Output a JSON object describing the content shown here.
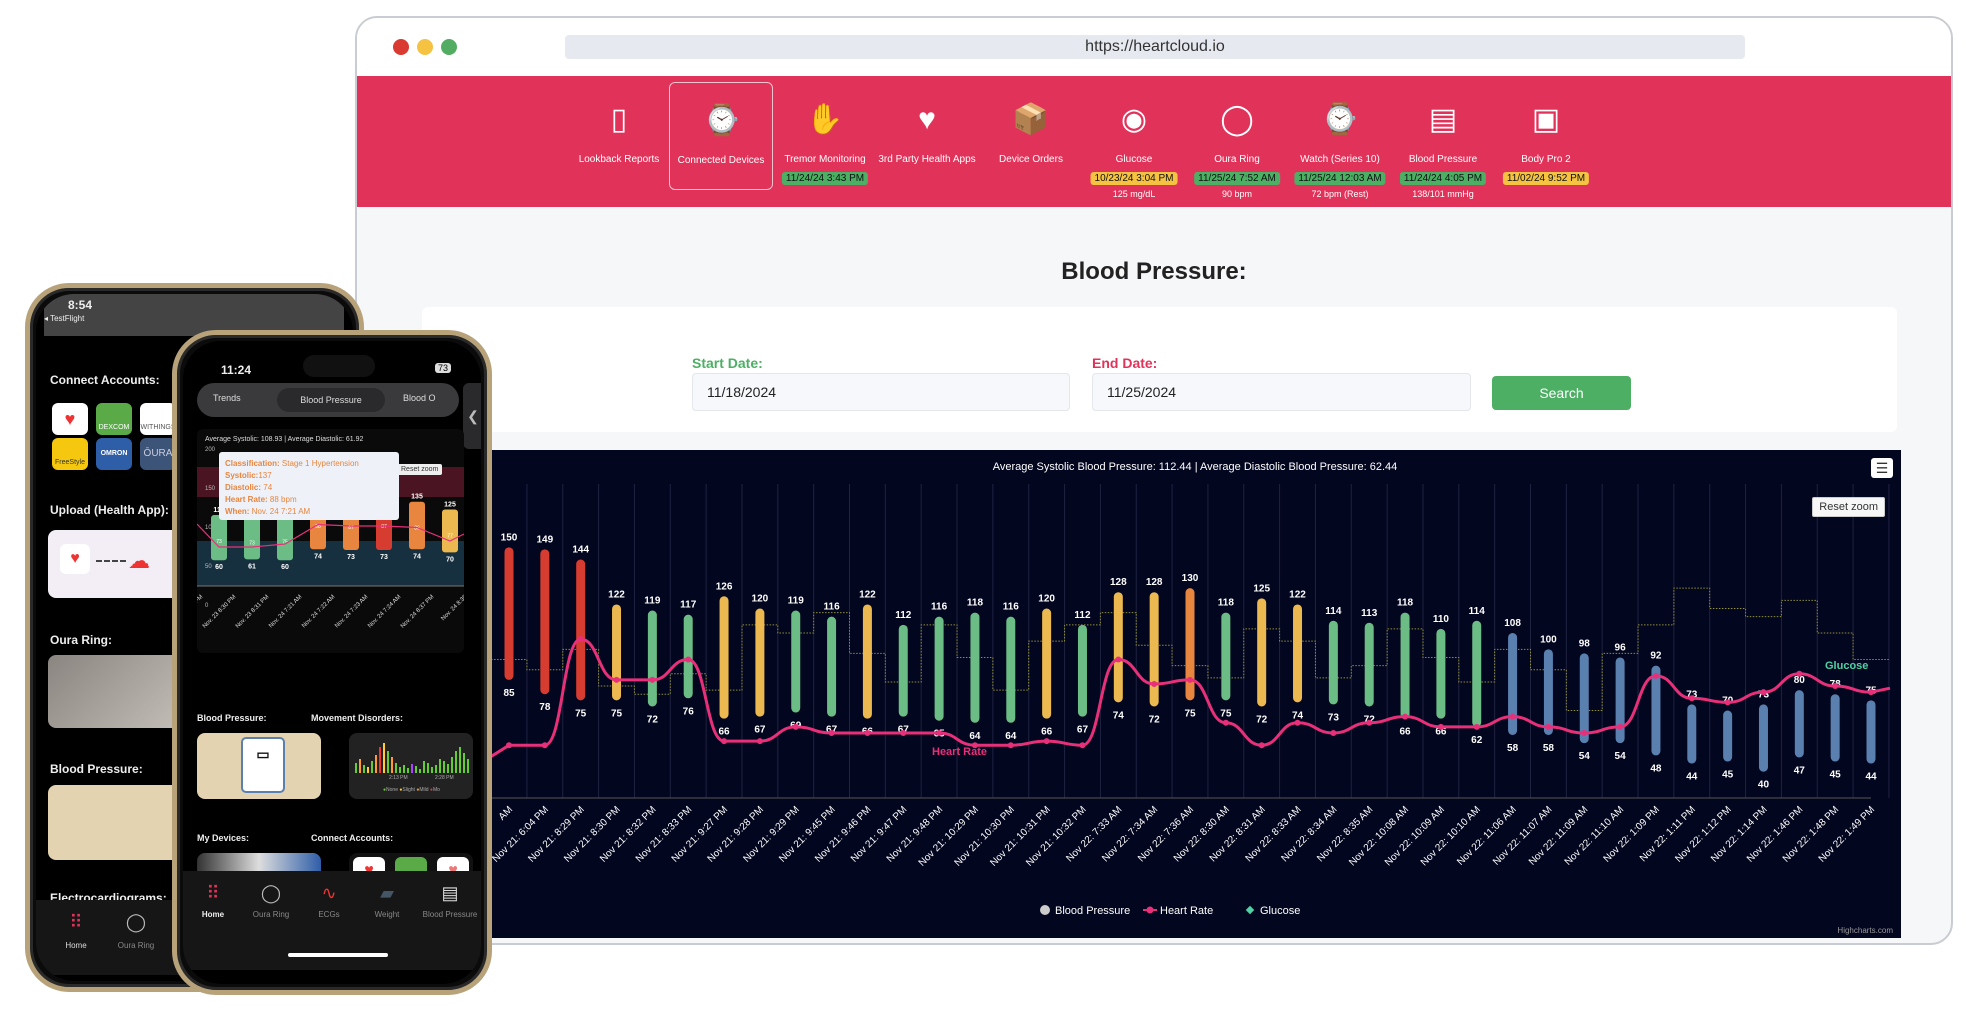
{
  "browser": {
    "url": "https://heartcloud.io",
    "traffic_colors": [
      "#d93a32",
      "#f5c242",
      "#52ad63"
    ]
  },
  "nav": {
    "accent": "#e1325a",
    "items": [
      {
        "label": "Lookback Reports",
        "icon": "report-icon"
      },
      {
        "label": "Connected Devices",
        "icon": "watch-devices-icon",
        "selected": true
      },
      {
        "label": "Tremor Monitoring",
        "icon": "tremor-hand-icon",
        "badge": "11/24/24 3:43 PM",
        "badge_color": "#4caf64"
      },
      {
        "label": "3rd Party Health Apps",
        "icon": "health-apps-icon"
      },
      {
        "label": "Device Orders",
        "icon": "package-icon"
      },
      {
        "label": "Glucose",
        "icon": "glucose-sensor-icon",
        "badge": "10/23/24 3:04 PM",
        "badge_color": "#f5c242",
        "value": "125 mg/dL"
      },
      {
        "label": "Oura Ring",
        "icon": "ring-icon",
        "badge": "11/25/24 7:52 AM",
        "badge_color": "#4caf64",
        "value": "90 bpm"
      },
      {
        "label": " Watch (Series 10)",
        "icon": "apple-watch-icon",
        "badge": "11/25/24 12:03 AM",
        "badge_color": "#4caf64",
        "value": "72 bpm (Rest)"
      },
      {
        "label": "Blood Pressure",
        "icon": "bp-monitor-icon",
        "badge": "11/24/24 4:05 PM",
        "badge_color": "#4caf64",
        "value": "138/101 mmHg"
      },
      {
        "label": "Body Pro 2",
        "icon": "scale-icon",
        "badge": "11/02/24 9:52 PM",
        "badge_color": "#f5c242"
      }
    ]
  },
  "page": {
    "title": "Blood Pressure:"
  },
  "form": {
    "start_label": "Start Date:",
    "start_value": "11/18/2024",
    "end_label": "End Date:",
    "end_value": "11/25/2024",
    "search_label": "Search",
    "start_color": "#4caf64",
    "end_color": "#e1325a"
  },
  "chart_data": {
    "type": "bar",
    "title": "Average Systolic Blood Pressure: 112.44 | Average Diastolic Blood Pressure: 62.44",
    "reset_zoom": "Reset zoom",
    "credits": "Highcharts.com",
    "categories": [
      "AM",
      "Nov 21: 6:04 PM",
      "Nov 21: 8:29 PM",
      "Nov 21: 8:30 PM",
      "Nov 21: 8:32 PM",
      "Nov 21: 8:33 PM",
      "Nov 21: 9:27 PM",
      "Nov 21: 9:28 PM",
      "Nov 21: 9:29 PM",
      "Nov 21: 9:45 PM",
      "Nov 21: 9:46 PM",
      "Nov 21: 9:47 PM",
      "Nov 21: 9:48 PM",
      "Nov 21: 10:29 PM",
      "Nov 21: 10:30 PM",
      "Nov 21: 10:31 PM",
      "Nov 21: 10:32 PM",
      "Nov 22: 7:33 AM",
      "Nov 22: 7:34 AM",
      "Nov 22: 7:36 AM",
      "Nov 22: 8:30 AM",
      "Nov 22: 8:31 AM",
      "Nov 22: 8:33 AM",
      "Nov 22: 8:34 AM",
      "Nov 22: 8:35 AM",
      "Nov 22: 10:08 AM",
      "Nov 22: 10:09 AM",
      "Nov 22: 10:10 AM",
      "Nov 22: 11:06 AM",
      "Nov 22: 11:07 AM",
      "Nov 22: 11:09 AM",
      "Nov 22: 11:10 AM",
      "Nov 22: 1:09 PM",
      "Nov 22: 1:11 PM",
      "Nov 22: 1:12 PM",
      "Nov 22: 1:14 PM",
      "Nov 22: 1:46 PM",
      "Nov 22: 1:48 PM",
      "Nov 22: 1:49 PM"
    ],
    "systolic": [
      150,
      149,
      144,
      122,
      119,
      117,
      126,
      120,
      119,
      116,
      122,
      112,
      116,
      118,
      116,
      120,
      112,
      128,
      128,
      130,
      118,
      125,
      122,
      114,
      113,
      118,
      110,
      114,
      108,
      100,
      98,
      96,
      92,
      73,
      70,
      73,
      80,
      78,
      75
    ],
    "diastolic": [
      85,
      78,
      75,
      75,
      72,
      76,
      66,
      67,
      69,
      67,
      66,
      67,
      65,
      64,
      64,
      66,
      67,
      74,
      72,
      75,
      75,
      72,
      74,
      73,
      72,
      66,
      66,
      62,
      58,
      58,
      54,
      54,
      48,
      44,
      45,
      40,
      47,
      45,
      44
    ],
    "heart_rate": [
      53,
      53,
      105,
      85,
      85,
      95,
      55,
      55,
      62,
      59,
      59,
      59,
      59,
      53,
      53,
      55,
      53,
      95,
      83,
      85,
      64,
      53,
      64,
      59,
      64,
      67,
      62,
      62,
      67,
      62,
      59,
      62,
      87,
      76,
      74,
      79,
      88,
      82,
      79
    ],
    "glucose": [
      95,
      90,
      100,
      82,
      78,
      88,
      80,
      112,
      108,
      118,
      98,
      84,
      112,
      96,
      80,
      104,
      112,
      118,
      102,
      92,
      86,
      110,
      104,
      86,
      92,
      110,
      96,
      84,
      100,
      90,
      70,
      98,
      112,
      130,
      120,
      116,
      124,
      108,
      95
    ],
    "colors": {
      "normal": "#6bbd85",
      "elevated": "#ebb950",
      "stage1": "#e8853f",
      "stage2": "#d63c30",
      "low": "#5a80b0",
      "heart_rate": "#e8307a",
      "glucose": "#8f8f3a",
      "glucose_label": "#4fd1a5"
    },
    "series_labels": {
      "heart_rate": "Heart Rate",
      "glucose": "Glucose"
    },
    "legend": [
      "Blood Pressure",
      "Heart Rate",
      "Glucose"
    ],
    "legend_position": "bottom-center",
    "ylim": [
      25,
      185
    ]
  },
  "front_phone": {
    "time": "11:24",
    "battery": "73",
    "segments": [
      "Trends",
      "Blood Pressure",
      "Blood O"
    ],
    "mini_chart": {
      "title": "Average Systolic: 108.93 | Average Diastolic: 61.92",
      "reset_zoom": "Reset zoom",
      "y_ticks": [
        "200",
        "150",
        "100",
        "50",
        "0"
      ],
      "categories": [
        "8 PM",
        "Nov. 23 8:30 PM",
        "Nov. 23 8:31 PM",
        "Nov. 24 7:21 AM",
        "Nov. 24 7:22 AM",
        "Nov. 24 7:23 AM",
        "Nov. 24 7:24 AM",
        "Nov. 24 8:37 PM",
        "Nov. 24 8:38"
      ],
      "systolic_labels": [
        "118",
        "",
        "",
        "",
        "",
        "",
        "135",
        "125"
      ],
      "diastolic": [
        "60",
        "61",
        "60",
        "74",
        "73",
        "73",
        "74",
        "70"
      ],
      "heart_rate": [
        "73",
        "73",
        "75",
        "88",
        "87",
        "87",
        "86",
        "77"
      ],
      "bar_colors": [
        "#6bbd85",
        "#6bbd85",
        "#6bbd85",
        "#e8853f",
        "#e8853f",
        "#d63c30",
        "#e8853f",
        "#ebb950"
      ],
      "tooltip": {
        "classification_label": "Classification:",
        "classification": "Stage 1 Hypertension",
        "systolic_label": "Systolic:",
        "systolic": "137",
        "diastolic_label": "Diastolic:",
        "diastolic": "74",
        "hr_label": "Heart Rate:",
        "hr": "88 bpm",
        "when_label": "When:",
        "when": "Nov. 24 7:21 AM"
      }
    },
    "sections": {
      "bp": "Blood Pressure:",
      "movement": "Movement Disorders:",
      "devices": "My Devices:",
      "accounts": "Connect Accounts:"
    },
    "movement_legend": [
      "None",
      "Slight",
      "Mild",
      "Mo"
    ],
    "movement_times": [
      "2:13 PM",
      "2:28 PM"
    ],
    "tabs": [
      "Home",
      "Oura Ring",
      "ECGs",
      "Weight",
      "Blood Pressure"
    ]
  },
  "back_phone": {
    "time": "8:54",
    "back": "◂ TestFlight",
    "sections": {
      "accounts": "Connect Accounts:",
      "upload": "Upload (Health App):",
      "oura": "Oura Ring:",
      "bp": "Blood Pressure:",
      "ecg": "Electrocardiograms:"
    },
    "accounts": [
      "DEXCOM",
      "WITHINGS",
      "FreeStyle",
      "OMRON",
      "ŌURA"
    ],
    "tabs": [
      "Home",
      "Oura Ring"
    ]
  }
}
